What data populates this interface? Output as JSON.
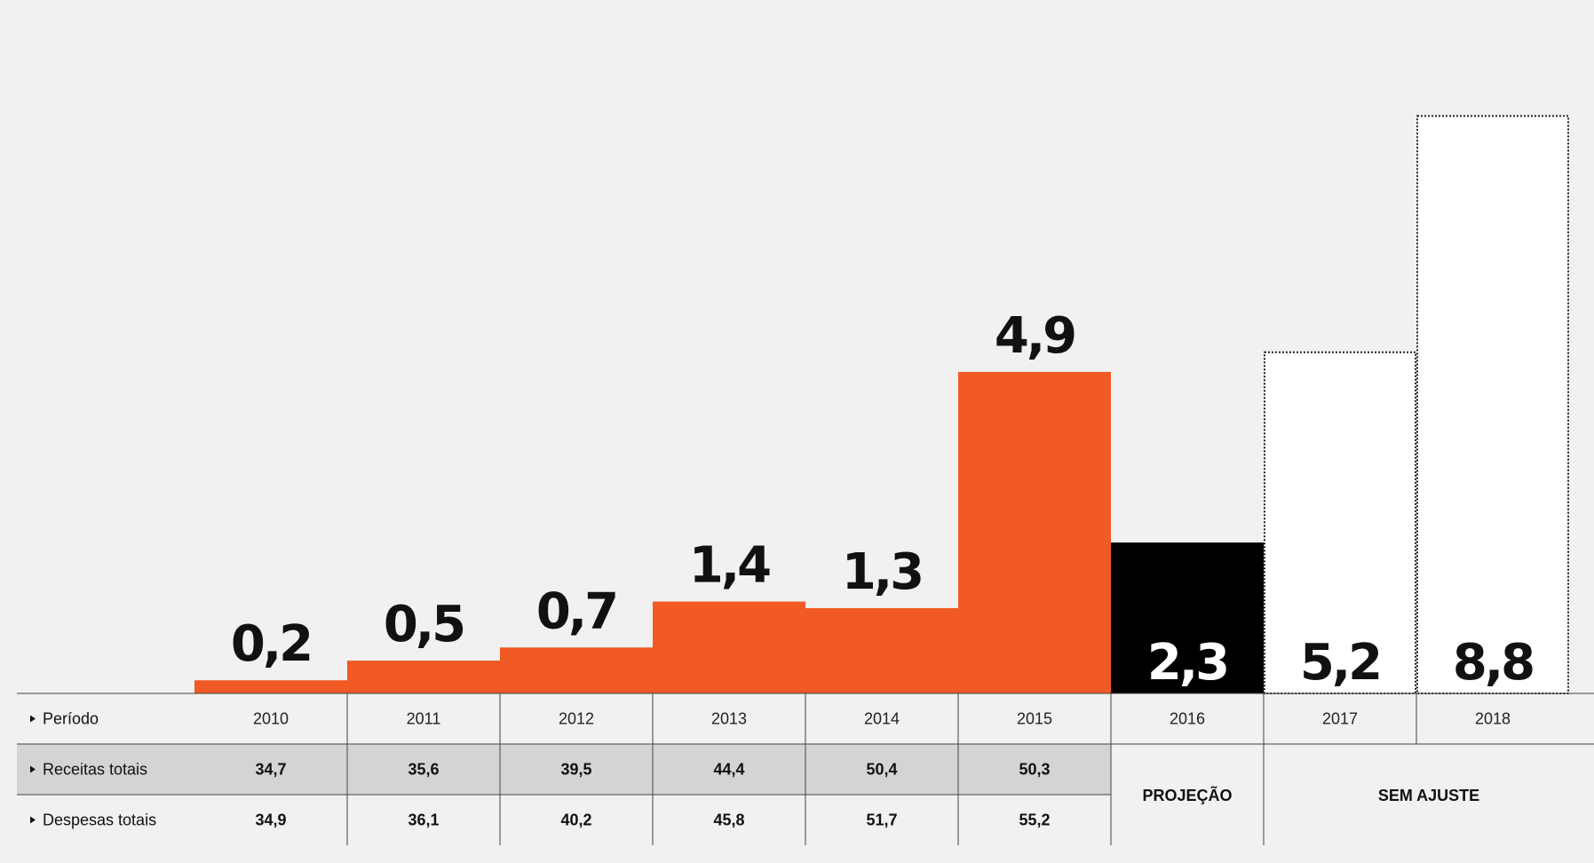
{
  "chart_data": {
    "type": "bar",
    "categories": [
      "2010",
      "2011",
      "2012",
      "2013",
      "2014",
      "2015",
      "2016",
      "2017",
      "2018"
    ],
    "values": [
      0.2,
      0.5,
      0.7,
      1.4,
      1.3,
      4.9,
      2.3,
      5.2,
      8.8
    ],
    "value_labels": [
      "0,2",
      "0,5",
      "0,7",
      "1,4",
      "1,3",
      "4,9",
      "2,3",
      "5,2",
      "8,8"
    ],
    "bar_styles": [
      "actual",
      "actual",
      "actual",
      "actual",
      "actual",
      "actual",
      "projection",
      "no-adjustment",
      "no-adjustment"
    ],
    "colors": {
      "actual": "#f15a24",
      "projection": "#000000",
      "no-adjustment": "#ffffff",
      "background": "#f0f1f0",
      "table_shade": "#d4d4d4"
    },
    "ylim": [
      0,
      10
    ],
    "table": {
      "row_labels": [
        "Período",
        "Receitas totais",
        "Despesas totais"
      ],
      "receitas": [
        "34,7",
        "35,6",
        "39,5",
        "44,4",
        "50,4",
        "50,3"
      ],
      "despesas": [
        "34,9",
        "36,1",
        "40,2",
        "45,8",
        "51,7",
        "55,2"
      ],
      "projection_label": "PROJEÇÃO",
      "no_adjustment_label": "SEM AJUSTE"
    }
  }
}
